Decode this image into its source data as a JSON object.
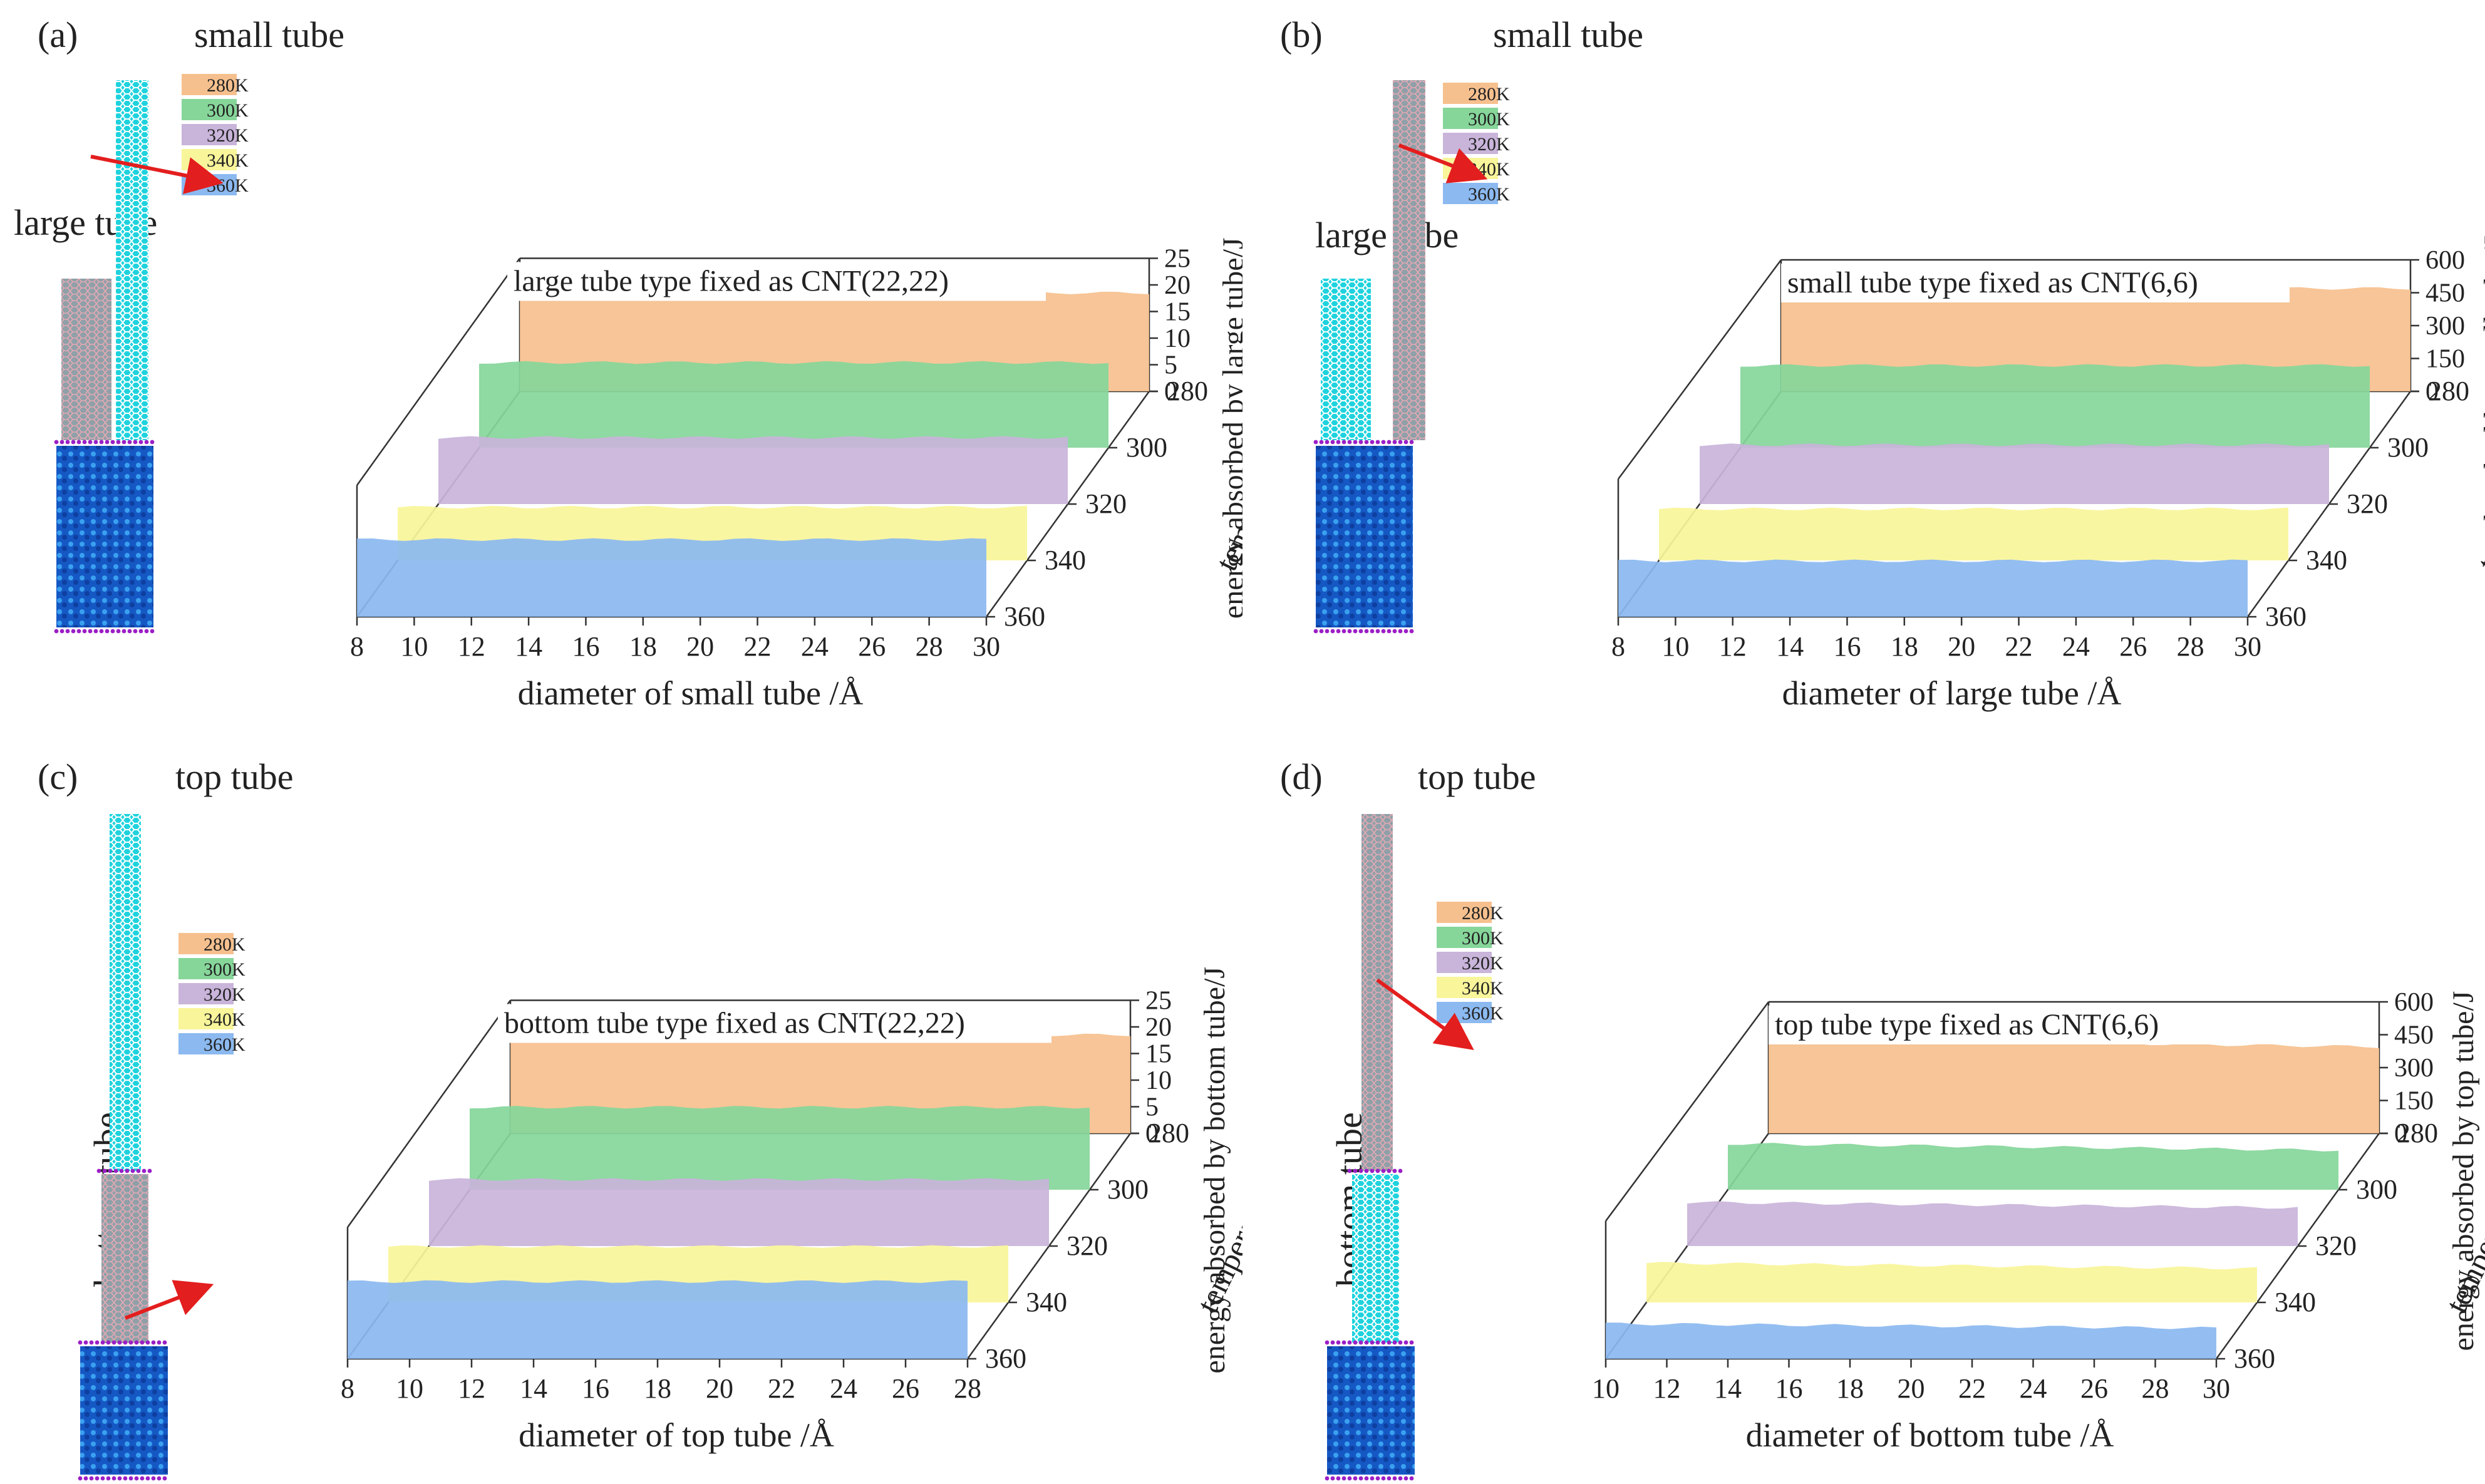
{
  "colors": {
    "280K": "#F6C08E",
    "300K": "#86D69A",
    "320K": "#C9B4DA",
    "340K": "#F8F59A",
    "360K": "#8BB9F0",
    "tube_cyan": "#1FD3DE",
    "tube_gray": "#8FA0A8",
    "water_blue": "#1E63D6",
    "boundary_purple": "#9B1FC6",
    "arrow_red": "#E31E1E"
  },
  "chart_data": [
    {
      "type": "area",
      "panel_label": "(a)",
      "tube_label_top": "small tube",
      "tube_label_side": "large tube",
      "annotation": "large tube type fixed as CNT(22,22)",
      "xlabel": "diameter of small tube /Å",
      "ylabel": "temperature/K",
      "zlabel": "energy absorbed by large tube/J",
      "x_ticks": [
        "8",
        "10",
        "12",
        "14",
        "16",
        "18",
        "20",
        "22",
        "24",
        "26",
        "28",
        "30"
      ],
      "y_ticks": [
        "280",
        "300",
        "320",
        "340",
        "360"
      ],
      "z_ticks": [
        "0",
        "5",
        "10",
        "15",
        "20",
        "25"
      ],
      "xlim": [
        8,
        30
      ],
      "zlim": [
        0,
        25
      ],
      "legend": [
        "280K",
        "300K",
        "320K",
        "340K",
        "360K"
      ],
      "series": [
        {
          "name": "280K",
          "x": [
            8,
            30
          ],
          "values": [
            18.5,
            18.5
          ]
        },
        {
          "name": "300K",
          "x": [
            8,
            30
          ],
          "values": [
            16,
            16
          ]
        },
        {
          "name": "320K",
          "x": [
            8,
            30
          ],
          "values": [
            12.5,
            12.5
          ]
        },
        {
          "name": "340K",
          "x": [
            8,
            30
          ],
          "values": [
            10,
            10
          ]
        },
        {
          "name": "360K",
          "x": [
            8,
            30
          ],
          "values": [
            14.5,
            14.5
          ]
        }
      ]
    },
    {
      "type": "area",
      "panel_label": "(b)",
      "tube_label_top": "small tube",
      "tube_label_side": "large tube",
      "annotation": "small tube type fixed as CNT(6,6)",
      "xlabel": "diameter of large tube /Å",
      "ylabel": "temperature/K",
      "zlabel": "energy absorbed by small tube/J",
      "x_ticks": [
        "8",
        "10",
        "12",
        "14",
        "16",
        "18",
        "20",
        "22",
        "24",
        "26",
        "28",
        "30"
      ],
      "y_ticks": [
        "280",
        "300",
        "320",
        "340",
        "360"
      ],
      "z_ticks": [
        "0",
        "150",
        "300",
        "450",
        "600"
      ],
      "xlim": [
        8,
        30
      ],
      "zlim": [
        0,
        600
      ],
      "legend": [
        "280K",
        "300K",
        "320K",
        "340K",
        "360K"
      ],
      "series": [
        {
          "name": "280K",
          "x": [
            8,
            30
          ],
          "values": [
            470,
            470
          ]
        },
        {
          "name": "300K",
          "x": [
            8,
            30
          ],
          "values": [
            375,
            375
          ]
        },
        {
          "name": "320K",
          "x": [
            8,
            30
          ],
          "values": [
            270,
            270
          ]
        },
        {
          "name": "340K",
          "x": [
            8,
            30
          ],
          "values": [
            235,
            235
          ]
        },
        {
          "name": "360K",
          "x": [
            8,
            30
          ],
          "values": [
            255,
            255
          ]
        }
      ]
    },
    {
      "type": "area",
      "panel_label": "(c)",
      "tube_label_top": "top tube",
      "tube_label_side": "bottom tube",
      "annotation": "bottom tube type fixed as CNT(22,22)",
      "xlabel": "diameter of top tube /Å",
      "ylabel": "temperature/K",
      "zlabel": "energy absorbed by bottom tube/J",
      "x_ticks": [
        "8",
        "10",
        "12",
        "14",
        "16",
        "18",
        "20",
        "22",
        "24",
        "26",
        "28"
      ],
      "y_ticks": [
        "280",
        "300",
        "320",
        "340",
        "360"
      ],
      "z_ticks": [
        "0",
        "5",
        "10",
        "15",
        "20",
        "25"
      ],
      "xlim": [
        8,
        28
      ],
      "zlim": [
        0,
        25
      ],
      "legend": [
        "280K",
        "300K",
        "320K",
        "340K",
        "360K"
      ],
      "series": [
        {
          "name": "280K",
          "x": [
            8,
            28
          ],
          "values": [
            18.5,
            18.5
          ]
        },
        {
          "name": "300K",
          "x": [
            8,
            28
          ],
          "values": [
            15.5,
            15.5
          ]
        },
        {
          "name": "320K",
          "x": [
            8,
            28
          ],
          "values": [
            12.5,
            12.5
          ]
        },
        {
          "name": "340K",
          "x": [
            8,
            28
          ],
          "values": [
            10.5,
            10.5
          ]
        },
        {
          "name": "360K",
          "x": [
            8,
            28
          ],
          "values": [
            14.5,
            14.5
          ]
        }
      ]
    },
    {
      "type": "area",
      "panel_label": "(d)",
      "tube_label_top": "top tube",
      "tube_label_side": "bottom tube",
      "annotation": "top tube type fixed as CNT(6,6)",
      "xlabel": "diameter of bottom tube /Å",
      "ylabel": "temperature/K",
      "zlabel": "energy absorbed by top tube/J",
      "x_ticks": [
        "10",
        "12",
        "14",
        "16",
        "18",
        "20",
        "22",
        "24",
        "26",
        "28",
        "30"
      ],
      "y_ticks": [
        "280",
        "300",
        "320",
        "340",
        "360"
      ],
      "z_ticks": [
        "0",
        "150",
        "300",
        "450",
        "600"
      ],
      "xlim": [
        10,
        30
      ],
      "zlim": [
        0,
        600
      ],
      "legend": [
        "280K",
        "300K",
        "320K",
        "340K",
        "360K"
      ],
      "series": [
        {
          "name": "280K",
          "x": [
            10,
            30
          ],
          "values": [
            430,
            395
          ]
        },
        {
          "name": "300K",
          "x": [
            10,
            30
          ],
          "values": [
            210,
            180
          ]
        },
        {
          "name": "320K",
          "x": [
            10,
            30
          ],
          "values": [
            200,
            175
          ]
        },
        {
          "name": "340K",
          "x": [
            10,
            30
          ],
          "values": [
            180,
            155
          ]
        },
        {
          "name": "360K",
          "x": [
            10,
            30
          ],
          "values": [
            160,
            140
          ]
        }
      ]
    }
  ]
}
